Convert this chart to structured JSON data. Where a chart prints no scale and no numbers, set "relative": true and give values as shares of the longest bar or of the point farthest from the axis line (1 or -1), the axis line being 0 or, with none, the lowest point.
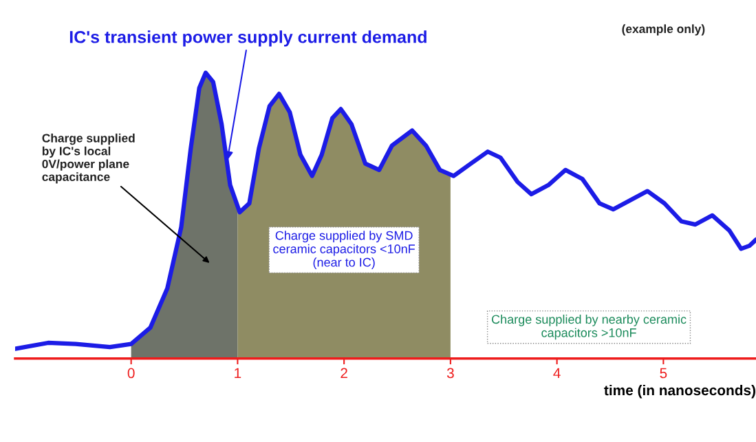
{
  "chart_data": {
    "type": "line",
    "relative": true,
    "xlabel": "time (in nanoseconds)",
    "xlim": [
      -1.09,
      5.87
    ],
    "xticks": [
      0,
      1,
      2,
      3,
      4,
      5
    ],
    "grid": false,
    "marker": "none",
    "line_style": "solid",
    "series": [
      {
        "type": "area",
        "color": "#6e7369",
        "x": [
          0,
          0.18,
          0.34,
          0.47,
          0.56,
          0.64,
          0.7,
          0.77,
          0.85,
          0.93,
          1.0
        ],
        "values": [
          0.051,
          0.108,
          0.246,
          0.459,
          0.735,
          0.947,
          1.0,
          0.968,
          0.82,
          0.607,
          0.523
        ]
      },
      {
        "type": "area",
        "color": "#8f8c63",
        "x": [
          1.0,
          1.02,
          1.11,
          1.2,
          1.3,
          1.39,
          1.49,
          1.59,
          1.7,
          1.79,
          1.89,
          1.97,
          2.07,
          2.2,
          2.33,
          2.45,
          2.64,
          2.77,
          2.9,
          3.0
        ],
        "values": [
          0.523,
          0.512,
          0.543,
          0.735,
          0.883,
          0.926,
          0.862,
          0.713,
          0.639,
          0.713,
          0.841,
          0.873,
          0.82,
          0.682,
          0.66,
          0.745,
          0.798,
          0.745,
          0.66,
          0.645
        ]
      },
      {
        "name": "IC's transient power supply current demand",
        "color": "#1c1ce6",
        "x": [
          -1.09,
          -0.78,
          -0.52,
          -0.2,
          0,
          0.18,
          0.34,
          0.47,
          0.56,
          0.64,
          0.7,
          0.77,
          0.85,
          0.93,
          1.02,
          1.11,
          1.2,
          1.3,
          1.39,
          1.49,
          1.59,
          1.7,
          1.79,
          1.89,
          1.97,
          2.07,
          2.2,
          2.33,
          2.45,
          2.64,
          2.77,
          2.9,
          3.03,
          3.19,
          3.35,
          3.47,
          3.63,
          3.76,
          3.92,
          4.08,
          4.24,
          4.4,
          4.53,
          4.69,
          4.85,
          5.01,
          5.17,
          5.3,
          5.46,
          5.62,
          5.73,
          5.81,
          5.87
        ],
        "values": [
          0.034,
          0.055,
          0.051,
          0.04,
          0.051,
          0.108,
          0.246,
          0.459,
          0.735,
          0.947,
          1.0,
          0.968,
          0.82,
          0.607,
          0.512,
          0.543,
          0.735,
          0.883,
          0.926,
          0.862,
          0.713,
          0.639,
          0.713,
          0.841,
          0.873,
          0.82,
          0.682,
          0.66,
          0.745,
          0.798,
          0.745,
          0.66,
          0.639,
          0.682,
          0.724,
          0.703,
          0.618,
          0.575,
          0.607,
          0.66,
          0.628,
          0.543,
          0.522,
          0.554,
          0.586,
          0.543,
          0.48,
          0.469,
          0.501,
          0.448,
          0.384,
          0.395,
          0.416
        ]
      }
    ],
    "annotations": [
      "(example only)",
      "Charge supplied by nearby ceramic\ncapacitors >10nF",
      "Charge supplied\nby IC's local\n0V/power plane\ncapacitance",
      "Charge supplied by SMD\nceramic capacitors <10nF\n(near to IC)"
    ]
  }
}
